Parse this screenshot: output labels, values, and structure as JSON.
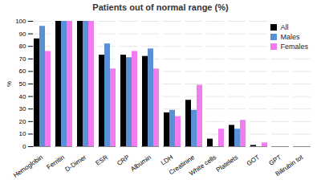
{
  "chart_data": {
    "type": "bar",
    "title": "Patients out of normal range (%)",
    "y_label": "%",
    "categories": [
      "Hemoglobin",
      "Ferritin",
      "D-Dimer",
      "ESR",
      "CRP",
      "Albumin",
      "LDH",
      "Creatinine",
      "White cells",
      "Platelets",
      "GOT",
      "GPT",
      "Bilirubin tot"
    ],
    "series": [
      {
        "name": "All",
        "color": "#000000",
        "values": [
          86,
          100,
          100,
          73,
          73,
          72,
          27,
          37,
          6,
          17,
          1,
          0,
          0
        ]
      },
      {
        "name": "Males",
        "color": "#5b8fd6",
        "values": [
          96,
          100,
          100,
          82,
          71,
          78,
          29,
          29,
          0,
          14,
          0,
          0,
          0
        ]
      },
      {
        "name": "Females",
        "color": "#f07cf0",
        "values": [
          76,
          100,
          100,
          62,
          76,
          62,
          24,
          49,
          14,
          21,
          3,
          0,
          0
        ]
      }
    ],
    "ylim": [
      0,
      100
    ],
    "yticks": [
      0,
      10,
      20,
      30,
      40,
      50,
      60,
      70,
      80,
      90,
      100
    ],
    "grid": true,
    "legend": "top-right"
  }
}
